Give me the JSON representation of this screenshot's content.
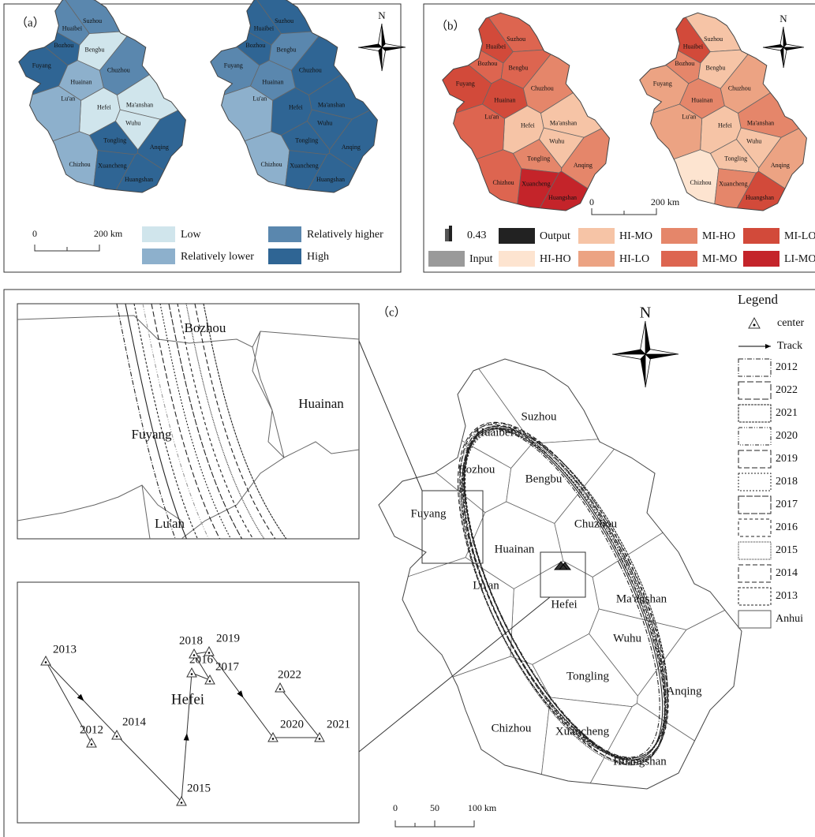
{
  "panel_a": {
    "label": "（a）",
    "north": "N",
    "cities": [
      "Suzhou",
      "Huaibei",
      "Bozhou",
      "Fuyang",
      "Bengbu",
      "Chuzhou",
      "Huainan",
      "Hefei",
      "Ma'anshan",
      "Lu'an",
      "Wuhu",
      "Tongling",
      "Anqing",
      "Chizhou",
      "Xuancheng",
      "Huangshan"
    ],
    "scale": [
      "0",
      "200 km"
    ],
    "legend": [
      {
        "label": "Low",
        "color": "#d0e5ec"
      },
      {
        "label": "Relatively lower",
        "color": "#8db0cc"
      },
      {
        "label": "Relatively higher",
        "color": "#5a87ae"
      },
      {
        "label": "High",
        "color": "#2f6594"
      }
    ]
  },
  "panel_b": {
    "label": "（b）",
    "north": "N",
    "cities": [
      "Suzhou",
      "Huaibei",
      "Bozhou",
      "Fuyang",
      "Bengbu",
      "Chuzhou",
      "Huainan",
      "Hefei",
      "Ma'anshan",
      "Lu'an",
      "Wuhu",
      "Tongling",
      "Anqing",
      "Chizhou",
      "Xuancheng",
      "Huangshan"
    ],
    "scale": [
      "0",
      "200 km"
    ],
    "legend": [
      {
        "label": "0.43",
        "color": "#555555"
      },
      {
        "label": "Output",
        "color": "#222222"
      },
      {
        "label": "HI-MO",
        "color": "#f6c4a6"
      },
      {
        "label": "MI-HO",
        "color": "#e5866a"
      },
      {
        "label": "MI-LO",
        "color": "#d24a3a"
      },
      {
        "label": "Input",
        "color": "#9a9a9a"
      },
      {
        "label": "HI-HO",
        "color": "#fde4d0"
      },
      {
        "label": "HI-LO",
        "color": "#eca383"
      },
      {
        "label": "MI-MO",
        "color": "#dd6550"
      },
      {
        "label": "LI-MO",
        "color": "#c4242a"
      }
    ]
  },
  "panel_c": {
    "label": "（c）",
    "north": "N",
    "legend_title": "Legend",
    "legend": [
      "center",
      "Track",
      "2012",
      "2022",
      "2021",
      "2020",
      "2019",
      "2018",
      "2017",
      "2016",
      "2015",
      "2014",
      "2013",
      "Anhui"
    ],
    "cities": [
      "Suzhou",
      "Huaibei",
      "Bozhou",
      "Fuyang",
      "Bengbu",
      "Chuzhou",
      "Huainan",
      "Hefei",
      "Ma'anshan",
      "Lu'an",
      "Wuhu",
      "Tongling",
      "Anqing",
      "Chizhou",
      "Xuancheng",
      "Huangshan"
    ],
    "scale": [
      "0",
      "50",
      "100 km"
    ],
    "inset_top": [
      "Bozhou",
      "Huainan",
      "Fuyang",
      "Lu'an"
    ],
    "inset_city": "Hefei",
    "inset_years": [
      "2012",
      "2013",
      "2014",
      "2015",
      "2016",
      "2017",
      "2018",
      "2019",
      "2020",
      "2021",
      "2022"
    ]
  }
}
